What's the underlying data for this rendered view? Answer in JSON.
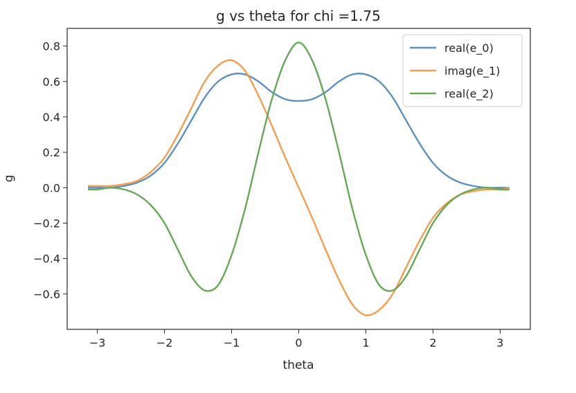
{
  "chart_data": {
    "type": "line",
    "title": "g vs theta for chi =1.75",
    "xlabel": "theta",
    "ylabel": "g",
    "xlim": [
      -3.45,
      3.45
    ],
    "ylim": [
      -0.8,
      0.9
    ],
    "xticks": [
      -3,
      -2,
      -1,
      0,
      1,
      2,
      3
    ],
    "xtick_labels": [
      "−3",
      "−2",
      "−1",
      "0",
      "1",
      "2",
      "3"
    ],
    "yticks": [
      -0.6,
      -0.4,
      -0.2,
      0.0,
      0.2,
      0.4,
      0.6,
      0.8
    ],
    "ytick_labels": [
      "−0.6",
      "−0.4",
      "−0.2",
      "0.0",
      "0.2",
      "0.4",
      "0.6",
      "0.8"
    ],
    "grid": false,
    "legend_position": "top-right",
    "x": [
      -3.14,
      -3.0,
      -2.8,
      -2.6,
      -2.4,
      -2.2,
      -2.0,
      -1.8,
      -1.6,
      -1.4,
      -1.2,
      -1.0,
      -0.8,
      -0.6,
      -0.4,
      -0.2,
      0.0,
      0.2,
      0.4,
      0.6,
      0.8,
      1.0,
      1.2,
      1.4,
      1.6,
      1.8,
      2.0,
      2.2,
      2.4,
      2.6,
      2.8,
      3.0,
      3.14
    ],
    "series": [
      {
        "name": "real(e_0)",
        "color": "#5b8fc2",
        "values": [
          0.0,
          0.0,
          0.0,
          0.01,
          0.03,
          0.07,
          0.14,
          0.25,
          0.38,
          0.51,
          0.6,
          0.64,
          0.64,
          0.6,
          0.54,
          0.5,
          0.49,
          0.5,
          0.54,
          0.6,
          0.64,
          0.64,
          0.6,
          0.51,
          0.38,
          0.25,
          0.14,
          0.07,
          0.03,
          0.01,
          0.0,
          0.0,
          0.0
        ]
      },
      {
        "name": "imag(e_1)",
        "color": "#f59c4e",
        "values": [
          0.01,
          0.01,
          0.01,
          0.02,
          0.04,
          0.09,
          0.17,
          0.3,
          0.45,
          0.6,
          0.69,
          0.72,
          0.66,
          0.52,
          0.35,
          0.17,
          0.0,
          -0.17,
          -0.35,
          -0.52,
          -0.66,
          -0.72,
          -0.69,
          -0.6,
          -0.45,
          -0.3,
          -0.17,
          -0.09,
          -0.04,
          -0.02,
          -0.01,
          -0.01,
          0.0
        ]
      },
      {
        "name": "real(e_2)",
        "color": "#64a855",
        "values": [
          -0.01,
          -0.01,
          0.0,
          -0.01,
          -0.04,
          -0.1,
          -0.2,
          -0.35,
          -0.5,
          -0.58,
          -0.55,
          -0.38,
          -0.12,
          0.2,
          0.5,
          0.72,
          0.82,
          0.72,
          0.5,
          0.2,
          -0.12,
          -0.38,
          -0.55,
          -0.58,
          -0.5,
          -0.35,
          -0.2,
          -0.1,
          -0.04,
          -0.01,
          0.0,
          -0.01,
          -0.01
        ]
      }
    ]
  }
}
